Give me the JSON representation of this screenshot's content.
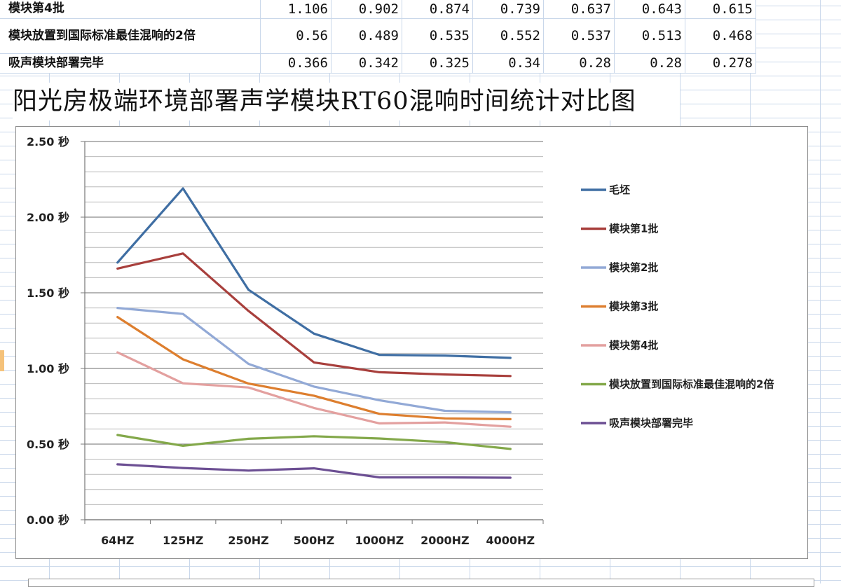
{
  "table": {
    "rows": [
      {
        "label": "模块第4批",
        "values": [
          "1.106",
          "0.902",
          "0.874",
          "0.739",
          "0.637",
          "0.643",
          "0.615"
        ]
      },
      {
        "label": "模块放置到国际标准最佳混响的2倍",
        "values": [
          "0.56",
          "0.489",
          "0.535",
          "0.552",
          "0.537",
          "0.513",
          "0.468"
        ]
      },
      {
        "label": "吸声模块部署完毕",
        "values": [
          "0.366",
          "0.342",
          "0.325",
          "0.34",
          "0.28",
          "0.28",
          "0.278"
        ]
      }
    ]
  },
  "chart_data": {
    "type": "line",
    "title": "阳光房极端环境部署声学模块RT60混响时间统计对比图",
    "categories": [
      "64HZ",
      "125HZ",
      "250HZ",
      "500HZ",
      "1000HZ",
      "2000HZ",
      "4000HZ"
    ],
    "y_ticks": [
      "0.00 秒",
      "0.50 秒",
      "1.00 秒",
      "1.50 秒",
      "2.00 秒",
      "2.50 秒"
    ],
    "ylim": [
      0,
      2.5
    ],
    "grid": true,
    "legend_position": "right",
    "series": [
      {
        "name": "毛坯",
        "color": "#3f6ea3",
        "values": [
          1.7,
          2.19,
          1.52,
          1.23,
          1.09,
          1.085,
          1.07
        ]
      },
      {
        "name": "模块第1批",
        "color": "#a83f3c",
        "values": [
          1.66,
          1.76,
          1.38,
          1.04,
          0.975,
          0.96,
          0.95
        ]
      },
      {
        "name": "模块第2批",
        "color": "#92a9d6",
        "values": [
          1.4,
          1.36,
          1.03,
          0.88,
          0.79,
          0.72,
          0.71
        ]
      },
      {
        "name": "模块第3批",
        "color": "#dd7e2e",
        "values": [
          1.34,
          1.06,
          0.9,
          0.82,
          0.7,
          0.67,
          0.665
        ]
      },
      {
        "name": "模块第4批",
        "color": "#e3a09f",
        "values": [
          1.106,
          0.902,
          0.874,
          0.739,
          0.637,
          0.643,
          0.615
        ]
      },
      {
        "name": "模块放置到国际标准最佳混响的2倍",
        "color": "#83a84a",
        "values": [
          0.56,
          0.489,
          0.535,
          0.552,
          0.537,
          0.513,
          0.468
        ]
      },
      {
        "name": "吸声模块部署完毕",
        "color": "#6c4f93",
        "values": [
          0.366,
          0.342,
          0.325,
          0.34,
          0.28,
          0.28,
          0.278
        ]
      }
    ]
  }
}
